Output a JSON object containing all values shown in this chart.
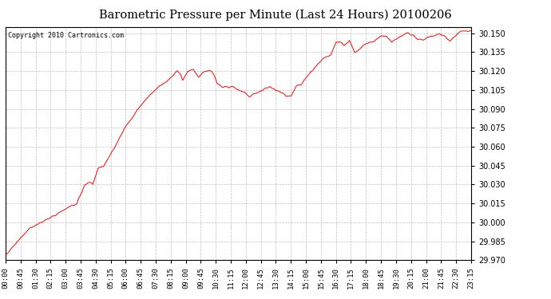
{
  "title": "Barometric Pressure per Minute (Last 24 Hours) 20100206",
  "copyright": "Copyright 2010 Cartronics.com",
  "line_color": "#ff0000",
  "background_color": "#ffffff",
  "plot_bg_color": "#ffffff",
  "grid_color": "#c0c0c0",
  "ylim": [
    29.97,
    30.155
  ],
  "yticks": [
    29.97,
    29.985,
    30.0,
    30.015,
    30.03,
    30.045,
    30.06,
    30.075,
    30.09,
    30.105,
    30.12,
    30.135,
    30.15
  ],
  "xtick_labels": [
    "00:00",
    "00:45",
    "01:30",
    "02:15",
    "03:00",
    "03:45",
    "04:30",
    "05:15",
    "06:00",
    "06:45",
    "07:30",
    "08:15",
    "09:00",
    "09:45",
    "10:30",
    "11:15",
    "12:00",
    "12:45",
    "13:30",
    "14:15",
    "15:00",
    "15:45",
    "16:30",
    "17:15",
    "18:00",
    "18:45",
    "19:30",
    "20:15",
    "21:00",
    "21:45",
    "22:30",
    "23:15"
  ],
  "pressure_keypoints": [
    [
      0,
      29.974
    ],
    [
      45,
      29.995
    ],
    [
      90,
      30.005
    ],
    [
      110,
      30.01
    ],
    [
      135,
      30.015
    ],
    [
      150,
      30.03
    ],
    [
      160,
      30.032
    ],
    [
      165,
      30.03
    ],
    [
      175,
      30.043
    ],
    [
      185,
      30.044
    ],
    [
      200,
      30.055
    ],
    [
      230,
      30.078
    ],
    [
      260,
      30.095
    ],
    [
      290,
      30.108
    ],
    [
      310,
      30.113
    ],
    [
      320,
      30.118
    ],
    [
      325,
      30.12
    ],
    [
      330,
      30.118
    ],
    [
      335,
      30.113
    ],
    [
      345,
      30.12
    ],
    [
      355,
      30.121
    ],
    [
      360,
      30.118
    ],
    [
      365,
      30.115
    ],
    [
      375,
      30.119
    ],
    [
      385,
      30.121
    ],
    [
      390,
      30.12
    ],
    [
      395,
      30.116
    ],
    [
      400,
      30.11
    ],
    [
      410,
      30.108
    ],
    [
      420,
      30.107
    ],
    [
      430,
      30.108
    ],
    [
      440,
      30.105
    ],
    [
      450,
      30.103
    ],
    [
      460,
      30.1
    ],
    [
      470,
      30.102
    ],
    [
      480,
      30.103
    ],
    [
      490,
      30.106
    ],
    [
      500,
      30.108
    ],
    [
      510,
      30.105
    ],
    [
      520,
      30.103
    ],
    [
      525,
      30.102
    ],
    [
      530,
      30.1
    ],
    [
      540,
      30.101
    ],
    [
      550,
      30.108
    ],
    [
      560,
      30.11
    ],
    [
      570,
      30.116
    ],
    [
      585,
      30.123
    ],
    [
      600,
      30.13
    ],
    [
      615,
      30.133
    ],
    [
      625,
      30.143
    ],
    [
      635,
      30.143
    ],
    [
      640,
      30.14
    ],
    [
      645,
      30.142
    ],
    [
      650,
      30.144
    ],
    [
      660,
      30.135
    ],
    [
      670,
      30.138
    ],
    [
      680,
      30.141
    ],
    [
      690,
      30.143
    ],
    [
      700,
      30.145
    ],
    [
      710,
      30.148
    ],
    [
      720,
      30.148
    ],
    [
      730,
      30.143
    ],
    [
      740,
      30.146
    ],
    [
      750,
      30.148
    ],
    [
      760,
      30.15
    ],
    [
      770,
      30.148
    ],
    [
      780,
      30.145
    ],
    [
      790,
      30.145
    ],
    [
      800,
      30.147
    ],
    [
      810,
      30.148
    ],
    [
      820,
      30.15
    ],
    [
      830,
      30.148
    ],
    [
      840,
      30.143
    ],
    [
      860,
      30.152
    ],
    [
      880,
      30.152
    ]
  ],
  "n_points": 881
}
